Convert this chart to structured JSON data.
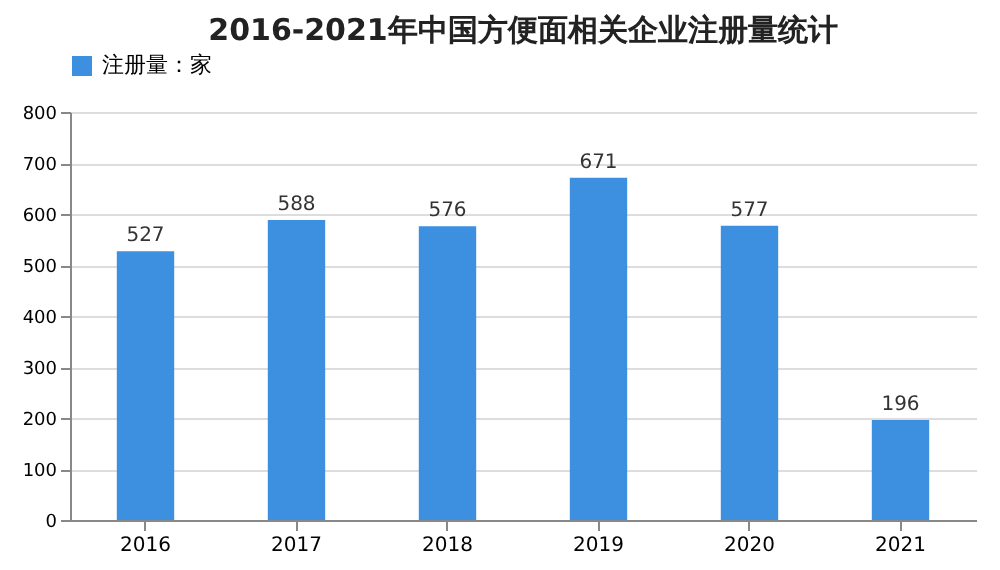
{
  "chart_data": {
    "type": "bar",
    "title": "2016-2021年中国方便面相关企业注册量统计",
    "categories": [
      "2016",
      "2017",
      "2018",
      "2019",
      "2020",
      "2021"
    ],
    "series": [
      {
        "name": "注册量：家",
        "color": "#3d8fe0",
        "values": [
          527,
          588,
          576,
          671,
          577,
          196
        ]
      }
    ],
    "ylim": [
      0,
      800
    ],
    "yticks": [
      0,
      100,
      200,
      300,
      400,
      500,
      600,
      700,
      800
    ],
    "grid": "y",
    "legend": "top",
    "data_labels": true
  }
}
